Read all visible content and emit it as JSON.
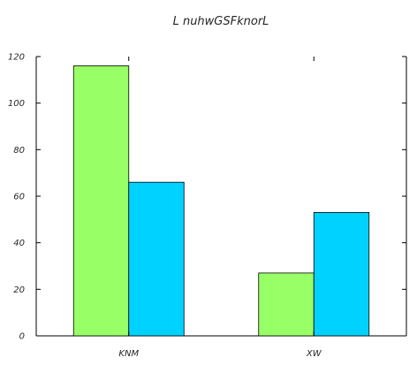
{
  "chart_data": {
    "type": "bar",
    "title": "L nuhwGSFknorL",
    "xlabel": "",
    "ylabel": "",
    "categories": [
      "KNM",
      "XW"
    ],
    "series": [
      {
        "values": [
          116,
          27
        ],
        "color": "#99ff66"
      },
      {
        "values": [
          66,
          53
        ],
        "color": "#00d2ff"
      }
    ],
    "ylim": [
      0,
      120
    ],
    "yticks": [
      0,
      20,
      40,
      60,
      80,
      100,
      120
    ],
    "grid": false,
    "legend": "none"
  }
}
